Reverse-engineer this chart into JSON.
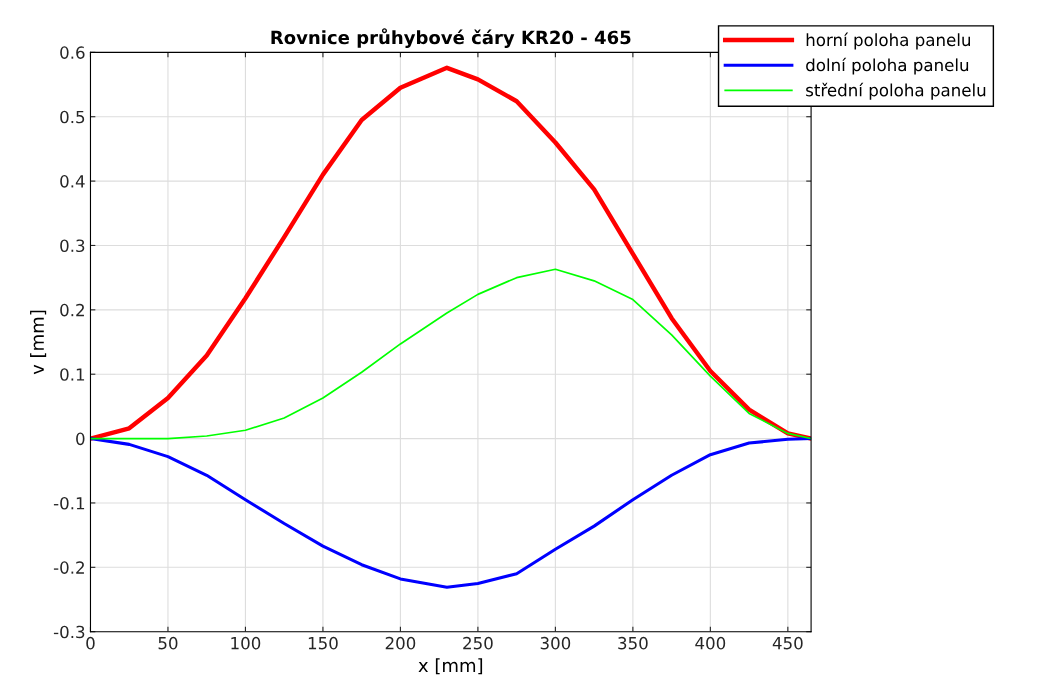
{
  "chart_data": {
    "type": "line",
    "title": "Rovnice průhybové čáry KR20 - 465",
    "xlabel": "x [mm]",
    "ylabel": "v [mm]",
    "xlim": [
      0,
      465
    ],
    "ylim": [
      -0.3,
      0.6
    ],
    "xticks": [
      0,
      50,
      100,
      150,
      200,
      250,
      300,
      350,
      400,
      450
    ],
    "yticks": [
      -0.3,
      -0.2,
      -0.1,
      0,
      0.1,
      0.2,
      0.3,
      0.4,
      0.5,
      0.6
    ],
    "grid": true,
    "legend": "top right",
    "marker": "none",
    "line_style": "solid",
    "x": [
      0,
      25,
      50,
      75,
      100,
      125,
      150,
      175,
      200,
      230,
      250,
      275,
      300,
      325,
      350,
      375,
      400,
      425,
      450,
      465
    ],
    "series": [
      {
        "name": "horní poloha panelu",
        "color": "#ff0000",
        "values": [
          0,
          0.016,
          0.063,
          0.129,
          0.218,
          0.313,
          0.41,
          0.495,
          0.545,
          0.576,
          0.558,
          0.524,
          0.46,
          0.387,
          0.287,
          0.187,
          0.105,
          0.045,
          0.008,
          0
        ]
      },
      {
        "name": "dolní poloha panelu",
        "color": "#0000ff",
        "values": [
          0,
          -0.009,
          -0.028,
          -0.057,
          -0.095,
          -0.132,
          -0.167,
          -0.196,
          -0.218,
          -0.231,
          -0.225,
          -0.21,
          -0.172,
          -0.136,
          -0.095,
          -0.057,
          -0.025,
          -0.007,
          -0.001,
          0
        ]
      },
      {
        "name": "střední poloha panelu",
        "color": "#00ff00",
        "values": [
          0,
          0,
          0,
          0.004,
          0.013,
          0.032,
          0.063,
          0.103,
          0.147,
          0.195,
          0.224,
          0.25,
          0.263,
          0.245,
          0.216,
          0.161,
          0.097,
          0.039,
          0.008,
          0
        ]
      }
    ]
  }
}
